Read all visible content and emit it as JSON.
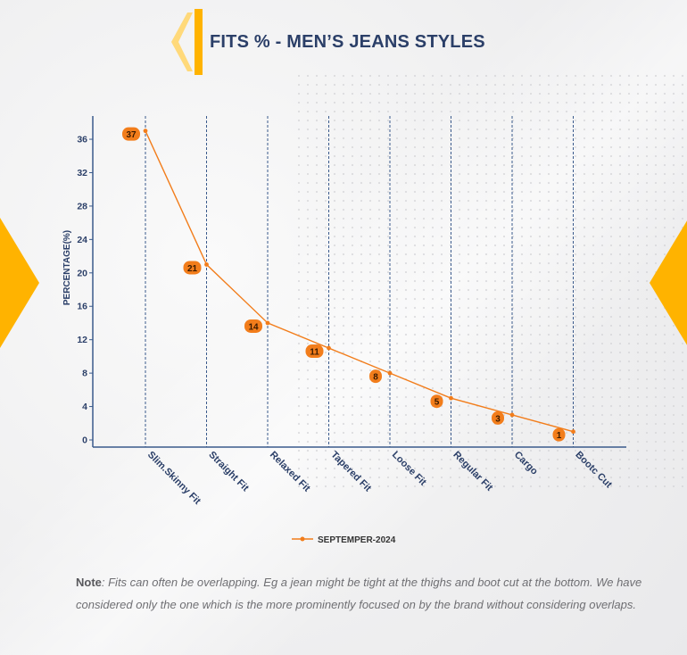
{
  "header": {
    "title": "FITS % - MEN’S JEANS STYLES"
  },
  "colors": {
    "accent": "#ffb300",
    "line": "#f27d1b",
    "axis": "#3a5a8c",
    "title": "#2b3f68"
  },
  "chart_data": {
    "type": "line",
    "title": "FITS % - MEN’S JEANS STYLES",
    "xlabel": "",
    "ylabel": "PERCENTAGE(%)",
    "categories": [
      "Slim.Skinny Fit",
      "Straight Fit",
      "Relaxed Fit",
      "Tapered Fit",
      "Loose Fit",
      "Regular Fit",
      "Cargo",
      "Bootc Cut"
    ],
    "series": [
      {
        "name": "SEPTEMPER-2024",
        "values": [
          37,
          21,
          14,
          11,
          8,
          5,
          3,
          1
        ]
      }
    ],
    "yticks": [
      0,
      4,
      8,
      12,
      16,
      20,
      24,
      28,
      32,
      36
    ],
    "ylim": [
      0,
      38
    ],
    "grid": "vertical dashed",
    "legend": "bottom"
  },
  "note": {
    "label": "Note",
    "text": ": Fits can often be overlapping. Eg a jean might be tight at the thighs and boot cut at the bottom. We have considered only the one which is the more prominently focused on by the brand without considering overlaps."
  }
}
